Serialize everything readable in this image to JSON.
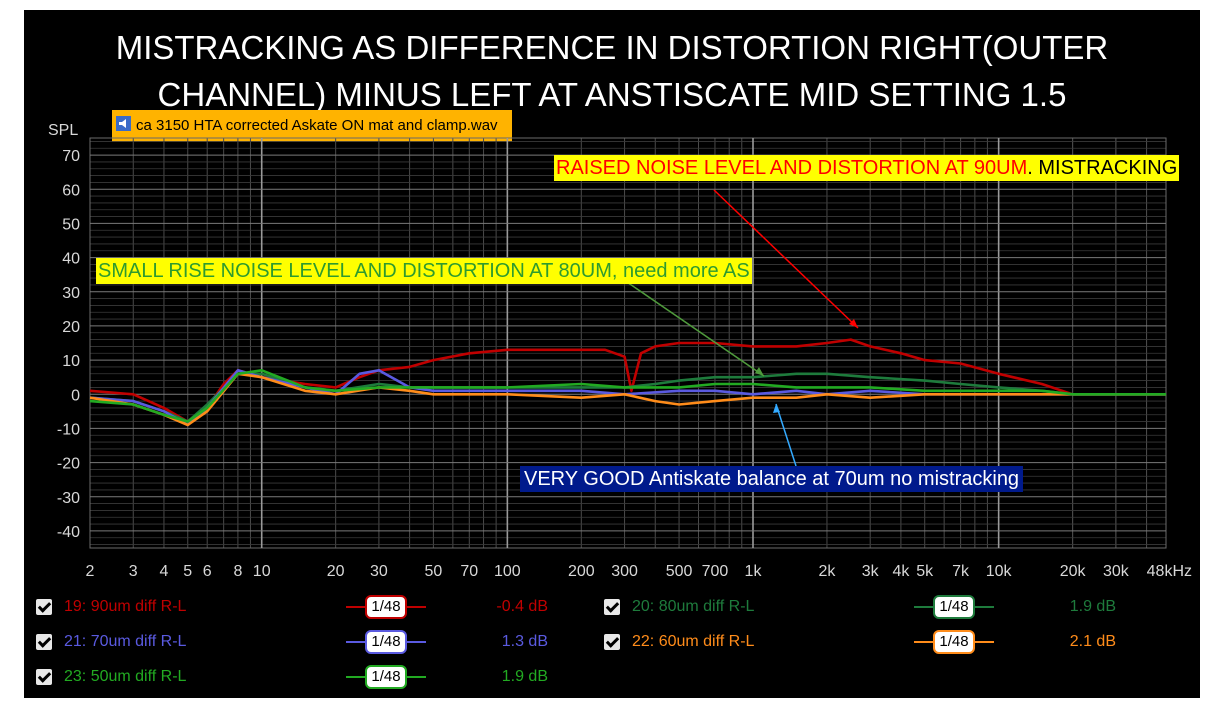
{
  "title_line1": "MISTRACKING AS DIFFERENCE IN DISTORTION RIGHT(OUTER",
  "title_line2": "CHANNEL) MINUS LEFT AT ANSTISCATE MID SETTING 1.5",
  "file_tag": "ca 3150 HTA corrected Askate ON  mat and clamp.wav",
  "annotations": {
    "a1_red": "RAISED NOISE LEVEL AND DISTORTION AT 90UM",
    "a1_black": ". MISTRACKING",
    "a2": "SMALL RISE  NOISE LEVEL AND DISTORTION AT 80UM, need more AS",
    "a3": "VERY GOOD Antiskate balance at 70um no mistracking"
  },
  "legend": [
    {
      "name": "19: 90um diff R-L",
      "color": "#c00000",
      "smoothing": "1/48",
      "value": "-0.4 dB"
    },
    {
      "name": "20: 80um diff R-L",
      "color": "#1e7b3c",
      "smoothing": "1/48",
      "value": "1.9 dB"
    },
    {
      "name": "21: 70um diff R-L",
      "color": "#5a5ae0",
      "smoothing": "1/48",
      "value": "1.3 dB"
    },
    {
      "name": "22: 60um diff R-L",
      "color": "#ff8c1a",
      "smoothing": "1/48",
      "value": "2.1 dB"
    },
    {
      "name": "23: 50um diff R-L",
      "color": "#22aa22",
      "smoothing": "1/48",
      "value": "1.9 dB"
    }
  ],
  "chart_data": {
    "type": "line",
    "ylabel": "SPL",
    "xscale": "log",
    "xlim": [
      2,
      48000
    ],
    "ylim": [
      -45,
      75
    ],
    "yticks": [
      70,
      60,
      50,
      40,
      30,
      20,
      10,
      0,
      -10,
      -20,
      -30,
      -40
    ],
    "xticks": [
      {
        "v": 2,
        "l": "2"
      },
      {
        "v": 3,
        "l": "3"
      },
      {
        "v": 4,
        "l": "4"
      },
      {
        "v": 5,
        "l": "5"
      },
      {
        "v": 6,
        "l": "6"
      },
      {
        "v": 8,
        "l": "8"
      },
      {
        "v": 10,
        "l": "10"
      },
      {
        "v": 20,
        "l": "20"
      },
      {
        "v": 30,
        "l": "30"
      },
      {
        "v": 50,
        "l": "50"
      },
      {
        "v": 70,
        "l": "70"
      },
      {
        "v": 100,
        "l": "100"
      },
      {
        "v": 200,
        "l": "200"
      },
      {
        "v": 300,
        "l": "300"
      },
      {
        "v": 500,
        "l": "500"
      },
      {
        "v": 700,
        "l": "700"
      },
      {
        "v": 1000,
        "l": "1k"
      },
      {
        "v": 2000,
        "l": "2k"
      },
      {
        "v": 3000,
        "l": "3k"
      },
      {
        "v": 4000,
        "l": "4k"
      },
      {
        "v": 5000,
        "l": "5k"
      },
      {
        "v": 7000,
        "l": "7k"
      },
      {
        "v": 10000,
        "l": "10k"
      },
      {
        "v": 20000,
        "l": "20k"
      },
      {
        "v": 30000,
        "l": "30k"
      },
      {
        "v": 48000,
        "l": "48kHz"
      }
    ],
    "series": [
      {
        "name": "19: 90um diff R-L",
        "color": "#c00000",
        "x": [
          2,
          3,
          4,
          5,
          6,
          7,
          8,
          10,
          15,
          20,
          25,
          30,
          40,
          50,
          70,
          100,
          150,
          200,
          250,
          300,
          320,
          350,
          400,
          500,
          700,
          1000,
          1500,
          2000,
          2500,
          3000,
          4000,
          5000,
          7000,
          10000,
          15000,
          20000,
          30000,
          48000
        ],
        "y": [
          1,
          0,
          -4,
          -8,
          -4,
          3,
          7,
          5,
          3,
          2,
          5,
          7,
          8,
          10,
          12,
          13,
          13,
          13,
          13,
          11,
          1,
          12,
          14,
          15,
          15,
          14,
          14,
          15,
          16,
          14,
          12,
          10,
          9,
          6,
          3,
          0,
          0,
          0
        ]
      },
      {
        "name": "20: 80um diff R-L",
        "color": "#1e7b3c",
        "x": [
          2,
          3,
          4,
          5,
          6,
          8,
          10,
          15,
          20,
          30,
          40,
          50,
          70,
          100,
          200,
          300,
          400,
          500,
          700,
          1000,
          1500,
          2000,
          3000,
          5000,
          7000,
          10000,
          15000,
          20000,
          30000,
          48000
        ],
        "y": [
          -1,
          -2,
          -5,
          -8,
          -3,
          6,
          6,
          2,
          1,
          3,
          2,
          2,
          2,
          2,
          2,
          2,
          3,
          4,
          5,
          5,
          6,
          6,
          5,
          4,
          3,
          2,
          1,
          0,
          0,
          0
        ]
      },
      {
        "name": "21: 70um diff R-L",
        "color": "#5a5ae0",
        "x": [
          2,
          3,
          4,
          5,
          6,
          8,
          10,
          15,
          20,
          25,
          30,
          40,
          50,
          70,
          100,
          200,
          300,
          500,
          700,
          1000,
          1500,
          2000,
          3000,
          5000,
          7000,
          10000,
          15000,
          20000,
          30000,
          48000
        ],
        "y": [
          -1,
          -2,
          -5,
          -9,
          -4,
          7,
          5,
          2,
          0,
          6,
          7,
          2,
          1,
          1,
          1,
          1,
          0,
          1,
          1,
          0,
          1,
          0,
          1,
          0,
          0,
          0,
          0,
          0,
          0,
          0
        ]
      },
      {
        "name": "22: 60um diff R-L",
        "color": "#ff8c1a",
        "x": [
          2,
          3,
          4,
          5,
          6,
          8,
          10,
          15,
          20,
          30,
          40,
          50,
          70,
          100,
          200,
          300,
          400,
          500,
          700,
          1000,
          1500,
          2000,
          3000,
          5000,
          7000,
          10000,
          20000,
          30000,
          48000
        ],
        "y": [
          -1,
          -3,
          -6,
          -9,
          -5,
          6,
          5,
          1,
          0,
          2,
          1,
          0,
          0,
          0,
          -1,
          0,
          -2,
          -3,
          -2,
          -1,
          -1,
          0,
          -1,
          0,
          0,
          0,
          0,
          0,
          0
        ]
      },
      {
        "name": "23: 50um diff R-L",
        "color": "#22aa22",
        "x": [
          2,
          3,
          4,
          5,
          6,
          8,
          10,
          15,
          20,
          30,
          40,
          50,
          70,
          100,
          200,
          300,
          500,
          700,
          1000,
          1500,
          2000,
          3000,
          5000,
          7000,
          10000,
          15000,
          20000,
          30000,
          48000
        ],
        "y": [
          -2,
          -3,
          -6,
          -8,
          -4,
          6,
          7,
          2,
          1,
          2,
          2,
          2,
          2,
          2,
          3,
          2,
          2,
          3,
          3,
          2,
          2,
          2,
          1,
          1,
          1,
          1,
          0,
          0,
          0
        ]
      }
    ]
  }
}
